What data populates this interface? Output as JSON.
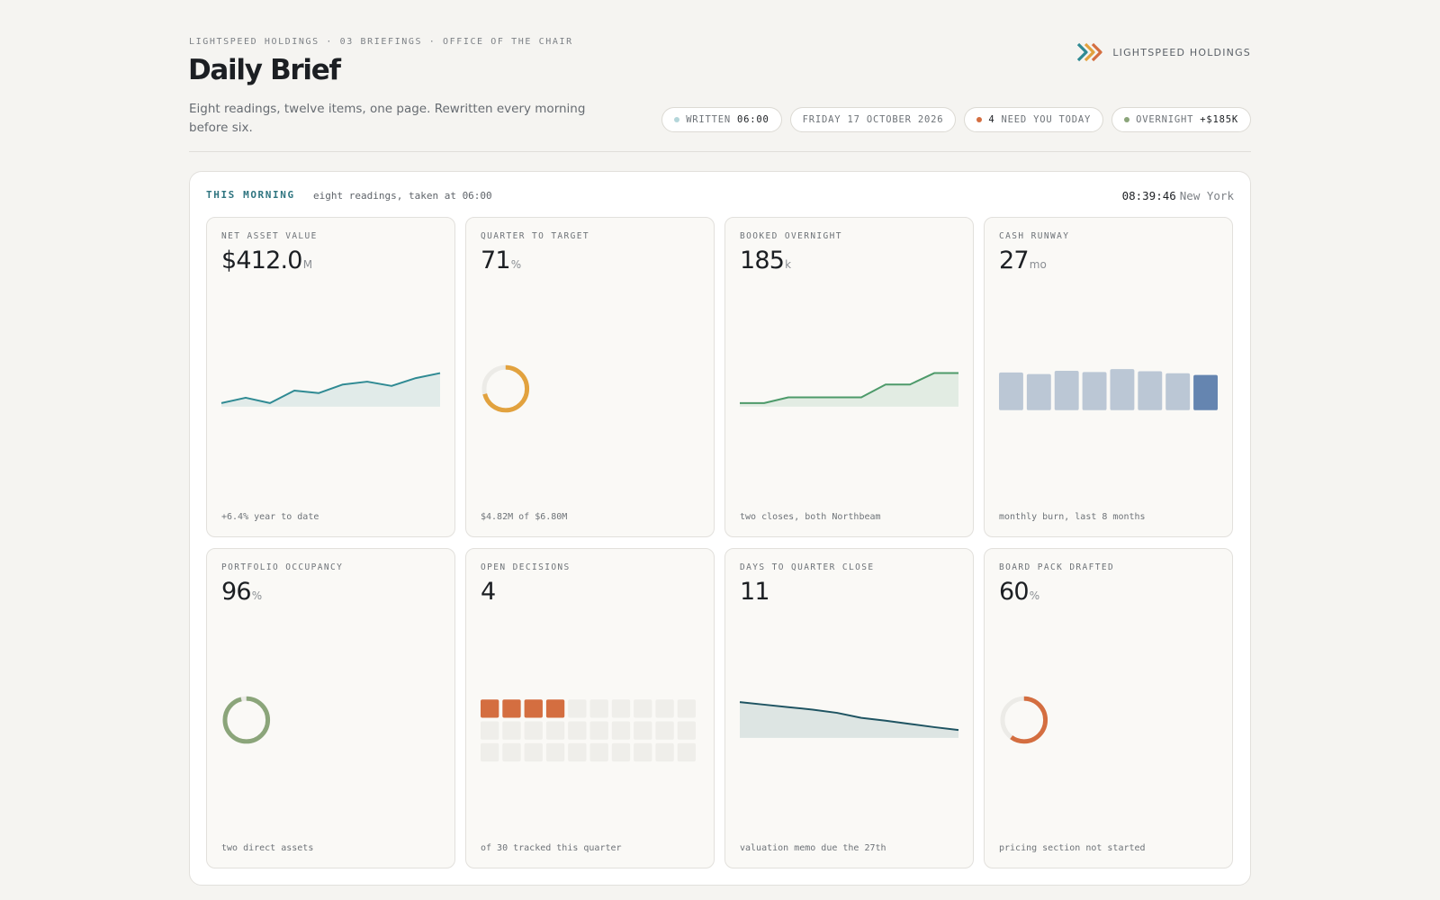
{
  "header": {
    "eyebrow": "LIGHTSPEED HOLDINGS · 03 BRIEFINGS · OFFICE OF THE CHAIR",
    "title": "Daily Brief",
    "subtitle": "Eight readings, twelve items, one page. Rewritten every morning before six.",
    "brand": "LIGHTSPEED HOLDINGS",
    "pills": {
      "written_label": "WRITTEN",
      "written_value": "06:00",
      "date": "FRIDAY 17 OCTOBER 2026",
      "need_value": "4",
      "need_label": "NEED YOU TODAY",
      "overnight_label": "OVERNIGHT",
      "overnight_value": "+$185K"
    }
  },
  "panel": {
    "label": "THIS MORNING",
    "subtitle": "eight readings, taken at 06:00",
    "clock_time": "08:39:46",
    "clock_city": "New York"
  },
  "colors": {
    "teal": "#2f8a93",
    "amber": "#e2a23e",
    "green": "#4d9a6a",
    "slate_blue": "#6585b0",
    "sage": "#8ba57a",
    "orange": "#d46e40",
    "navy": "#1f5462"
  },
  "cards": [
    {
      "label": "NET ASSET VALUE",
      "value": "$412.0",
      "unit": "M",
      "note": "+6.4% year to date",
      "viz": {
        "kind": "area",
        "color": "#2f8a93",
        "fill": "#e1ebe9",
        "values": [
          1.0,
          2.5,
          1.0,
          4.5,
          3.8,
          6.2,
          7.0,
          5.8,
          8.0,
          9.4
        ]
      }
    },
    {
      "label": "QUARTER TO TARGET",
      "value": "71",
      "unit": "%",
      "note": "$4.82M of $6.80M",
      "viz": {
        "kind": "donut",
        "color": "#e2a23e",
        "fraction": 0.71
      }
    },
    {
      "label": "BOOKED OVERNIGHT",
      "value": "185",
      "unit": "k",
      "note": "two closes, both Northbeam",
      "viz": {
        "kind": "step",
        "color": "#4d9a6a",
        "fill": "#e2ece3",
        "values": [
          1.0,
          1.0,
          2.6,
          2.6,
          2.6,
          2.6,
          6.2,
          6.2,
          9.4,
          9.4
        ]
      }
    },
    {
      "label": "CASH RUNWAY",
      "value": "27",
      "unit": "mo",
      "note": "monthly burn, last 8 months",
      "viz": {
        "kind": "bars",
        "color": "#bbc7d5",
        "highlight": "#6585b0",
        "values": [
          9.2,
          8.8,
          9.6,
          9.3,
          10.0,
          9.5,
          9.0,
          8.6
        ]
      }
    },
    {
      "label": "PORTFOLIO OCCUPANCY",
      "value": "96",
      "unit": "%",
      "note": "two direct assets",
      "viz": {
        "kind": "donut",
        "color": "#8ba57a",
        "fraction": 0.96
      }
    },
    {
      "label": "OPEN DECISIONS",
      "value": "4",
      "unit": "",
      "note": "of 30 tracked this quarter",
      "viz": {
        "kind": "squares",
        "color": "#d46e40",
        "filled": 4,
        "total": 30
      }
    },
    {
      "label": "DAYS TO QUARTER CLOSE",
      "value": "11",
      "unit": "",
      "note": "valuation memo due the 27th",
      "viz": {
        "kind": "area",
        "color": "#1f5462",
        "fill": "#dde5e3",
        "values": [
          10.0,
          9.3,
          8.6,
          7.9,
          7.0,
          5.6,
          4.8,
          3.9,
          3.0,
          2.2
        ]
      }
    },
    {
      "label": "BOARD PACK DRAFTED",
      "value": "60",
      "unit": "%",
      "note": "pricing section not started",
      "viz": {
        "kind": "donut",
        "color": "#d46e40",
        "fraction": 0.6
      }
    }
  ]
}
